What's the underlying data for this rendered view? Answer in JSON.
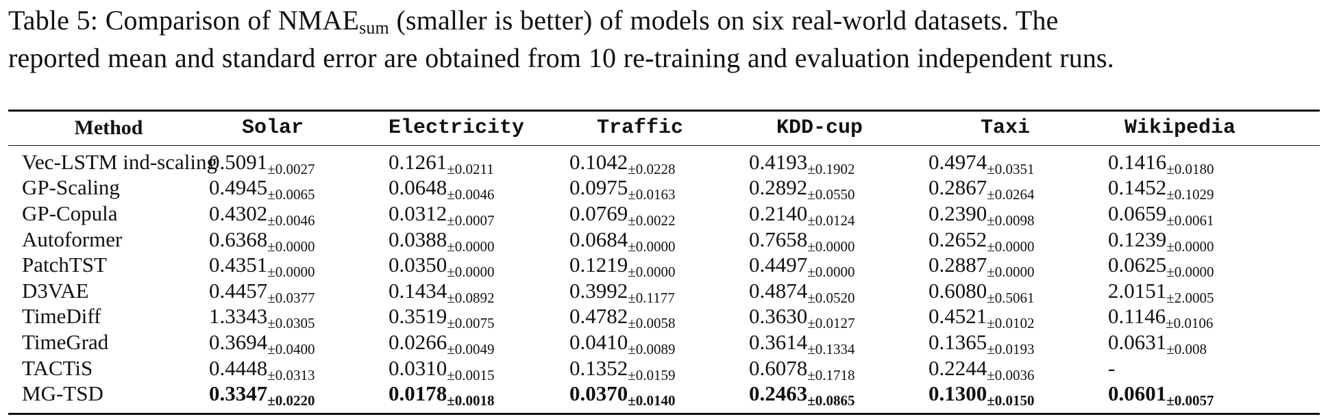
{
  "caption": {
    "line1_prefix": "Table 5: Comparison of NMAE",
    "line1_sub": "sum",
    "line1_suffix": " (smaller is better) of models on six real-world datasets.  The",
    "line2": "reported mean and standard error are obtained from 10 re-training and evaluation independent runs."
  },
  "table": {
    "method_header": "Method",
    "dataset_headers": [
      "Solar",
      "Electricity",
      "Traffic",
      "KDD-cup",
      "Taxi",
      "Wikipedia"
    ],
    "rows": [
      {
        "method": "Vec-LSTM ind-scaling",
        "cells": [
          {
            "mean": "0.5091",
            "se": "±0.0027"
          },
          {
            "mean": "0.1261",
            "se": "±0.0211"
          },
          {
            "mean": "0.1042",
            "se": "±0.0228"
          },
          {
            "mean": "0.4193",
            "se": "±0.1902"
          },
          {
            "mean": "0.4974",
            "se": "±0.0351"
          },
          {
            "mean": "0.1416",
            "se": "±0.0180"
          }
        ]
      },
      {
        "method": "GP-Scaling",
        "cells": [
          {
            "mean": "0.4945",
            "se": "±0.0065"
          },
          {
            "mean": "0.0648",
            "se": "±0.0046"
          },
          {
            "mean": "0.0975",
            "se": "±0.0163"
          },
          {
            "mean": "0.2892",
            "se": "±0.0550"
          },
          {
            "mean": "0.2867",
            "se": "±0.0264"
          },
          {
            "mean": "0.1452",
            "se": "±0.1029"
          }
        ]
      },
      {
        "method": "GP-Copula",
        "cells": [
          {
            "mean": "0.4302",
            "se": "±0.0046"
          },
          {
            "mean": "0.0312",
            "se": "±0.0007"
          },
          {
            "mean": "0.0769",
            "se": "±0.0022"
          },
          {
            "mean": "0.2140",
            "se": "±0.0124"
          },
          {
            "mean": "0.2390",
            "se": "±0.0098"
          },
          {
            "mean": "0.0659",
            "se": "±0.0061"
          }
        ]
      },
      {
        "method": "Autoformer",
        "cells": [
          {
            "mean": "0.6368",
            "se": "±0.0000"
          },
          {
            "mean": "0.0388",
            "se": "±0.0000"
          },
          {
            "mean": "0.0684",
            "se": "±0.0000"
          },
          {
            "mean": "0.7658",
            "se": "±0.0000"
          },
          {
            "mean": "0.2652",
            "se": "±0.0000"
          },
          {
            "mean": "0.1239",
            "se": "±0.0000"
          }
        ]
      },
      {
        "method": "PatchTST",
        "cells": [
          {
            "mean": "0.4351",
            "se": "±0.0000"
          },
          {
            "mean": "0.0350",
            "se": "±0.0000"
          },
          {
            "mean": "0.1219",
            "se": "±0.0000"
          },
          {
            "mean": "0.4497",
            "se": "±0.0000"
          },
          {
            "mean": "0.2887",
            "se": "±0.0000"
          },
          {
            "mean": "0.0625",
            "se": "±0.0000"
          }
        ]
      },
      {
        "method": "D3VAE",
        "cells": [
          {
            "mean": "0.4457",
            "se": "±0.0377"
          },
          {
            "mean": "0.1434",
            "se": "±0.0892"
          },
          {
            "mean": "0.3992",
            "se": "±0.1177"
          },
          {
            "mean": "0.4874",
            "se": "±0.0520"
          },
          {
            "mean": "0.6080",
            "se": "±0.5061"
          },
          {
            "mean": "2.0151",
            "se": "±2.0005"
          }
        ]
      },
      {
        "method": "TimeDiff",
        "cells": [
          {
            "mean": "1.3343",
            "se": "±0.0305"
          },
          {
            "mean": "0.3519",
            "se": "±0.0075"
          },
          {
            "mean": "0.4782",
            "se": "±0.0058"
          },
          {
            "mean": "0.3630",
            "se": "±0.0127"
          },
          {
            "mean": "0.4521",
            "se": "±0.0102"
          },
          {
            "mean": "0.1146",
            "se": "±0.0106"
          }
        ]
      },
      {
        "method": "TimeGrad",
        "cells": [
          {
            "mean": "0.3694",
            "se": "±0.0400"
          },
          {
            "mean": "0.0266",
            "se": "±0.0049"
          },
          {
            "mean": "0.0410",
            "se": "±0.0089"
          },
          {
            "mean": "0.3614",
            "se": "±0.1334"
          },
          {
            "mean": "0.1365",
            "se": "±0.0193"
          },
          {
            "mean": "0.0631",
            "se": "±0.008"
          }
        ]
      },
      {
        "method": "TACTiS",
        "cells": [
          {
            "mean": "0.4448",
            "se": "±0.0313"
          },
          {
            "mean": "0.0310",
            "se": "±0.0015"
          },
          {
            "mean": "0.1352",
            "se": "±0.0159"
          },
          {
            "mean": "0.6078",
            "se": "±0.1718"
          },
          {
            "mean": "0.2244",
            "se": "±0.0036"
          },
          {
            "mean": "-",
            "se": ""
          }
        ]
      },
      {
        "method": "MG-TSD",
        "best": true,
        "cells": [
          {
            "mean": "0.3347",
            "se": "±0.0220"
          },
          {
            "mean": "0.0178",
            "se": "±0.0018"
          },
          {
            "mean": "0.0370",
            "se": "±0.0140"
          },
          {
            "mean": "0.2463",
            "se": "±0.0865"
          },
          {
            "mean": "0.1300",
            "se": "±0.0150"
          },
          {
            "mean": "0.0601",
            "se": "±0.0057"
          }
        ]
      }
    ]
  }
}
